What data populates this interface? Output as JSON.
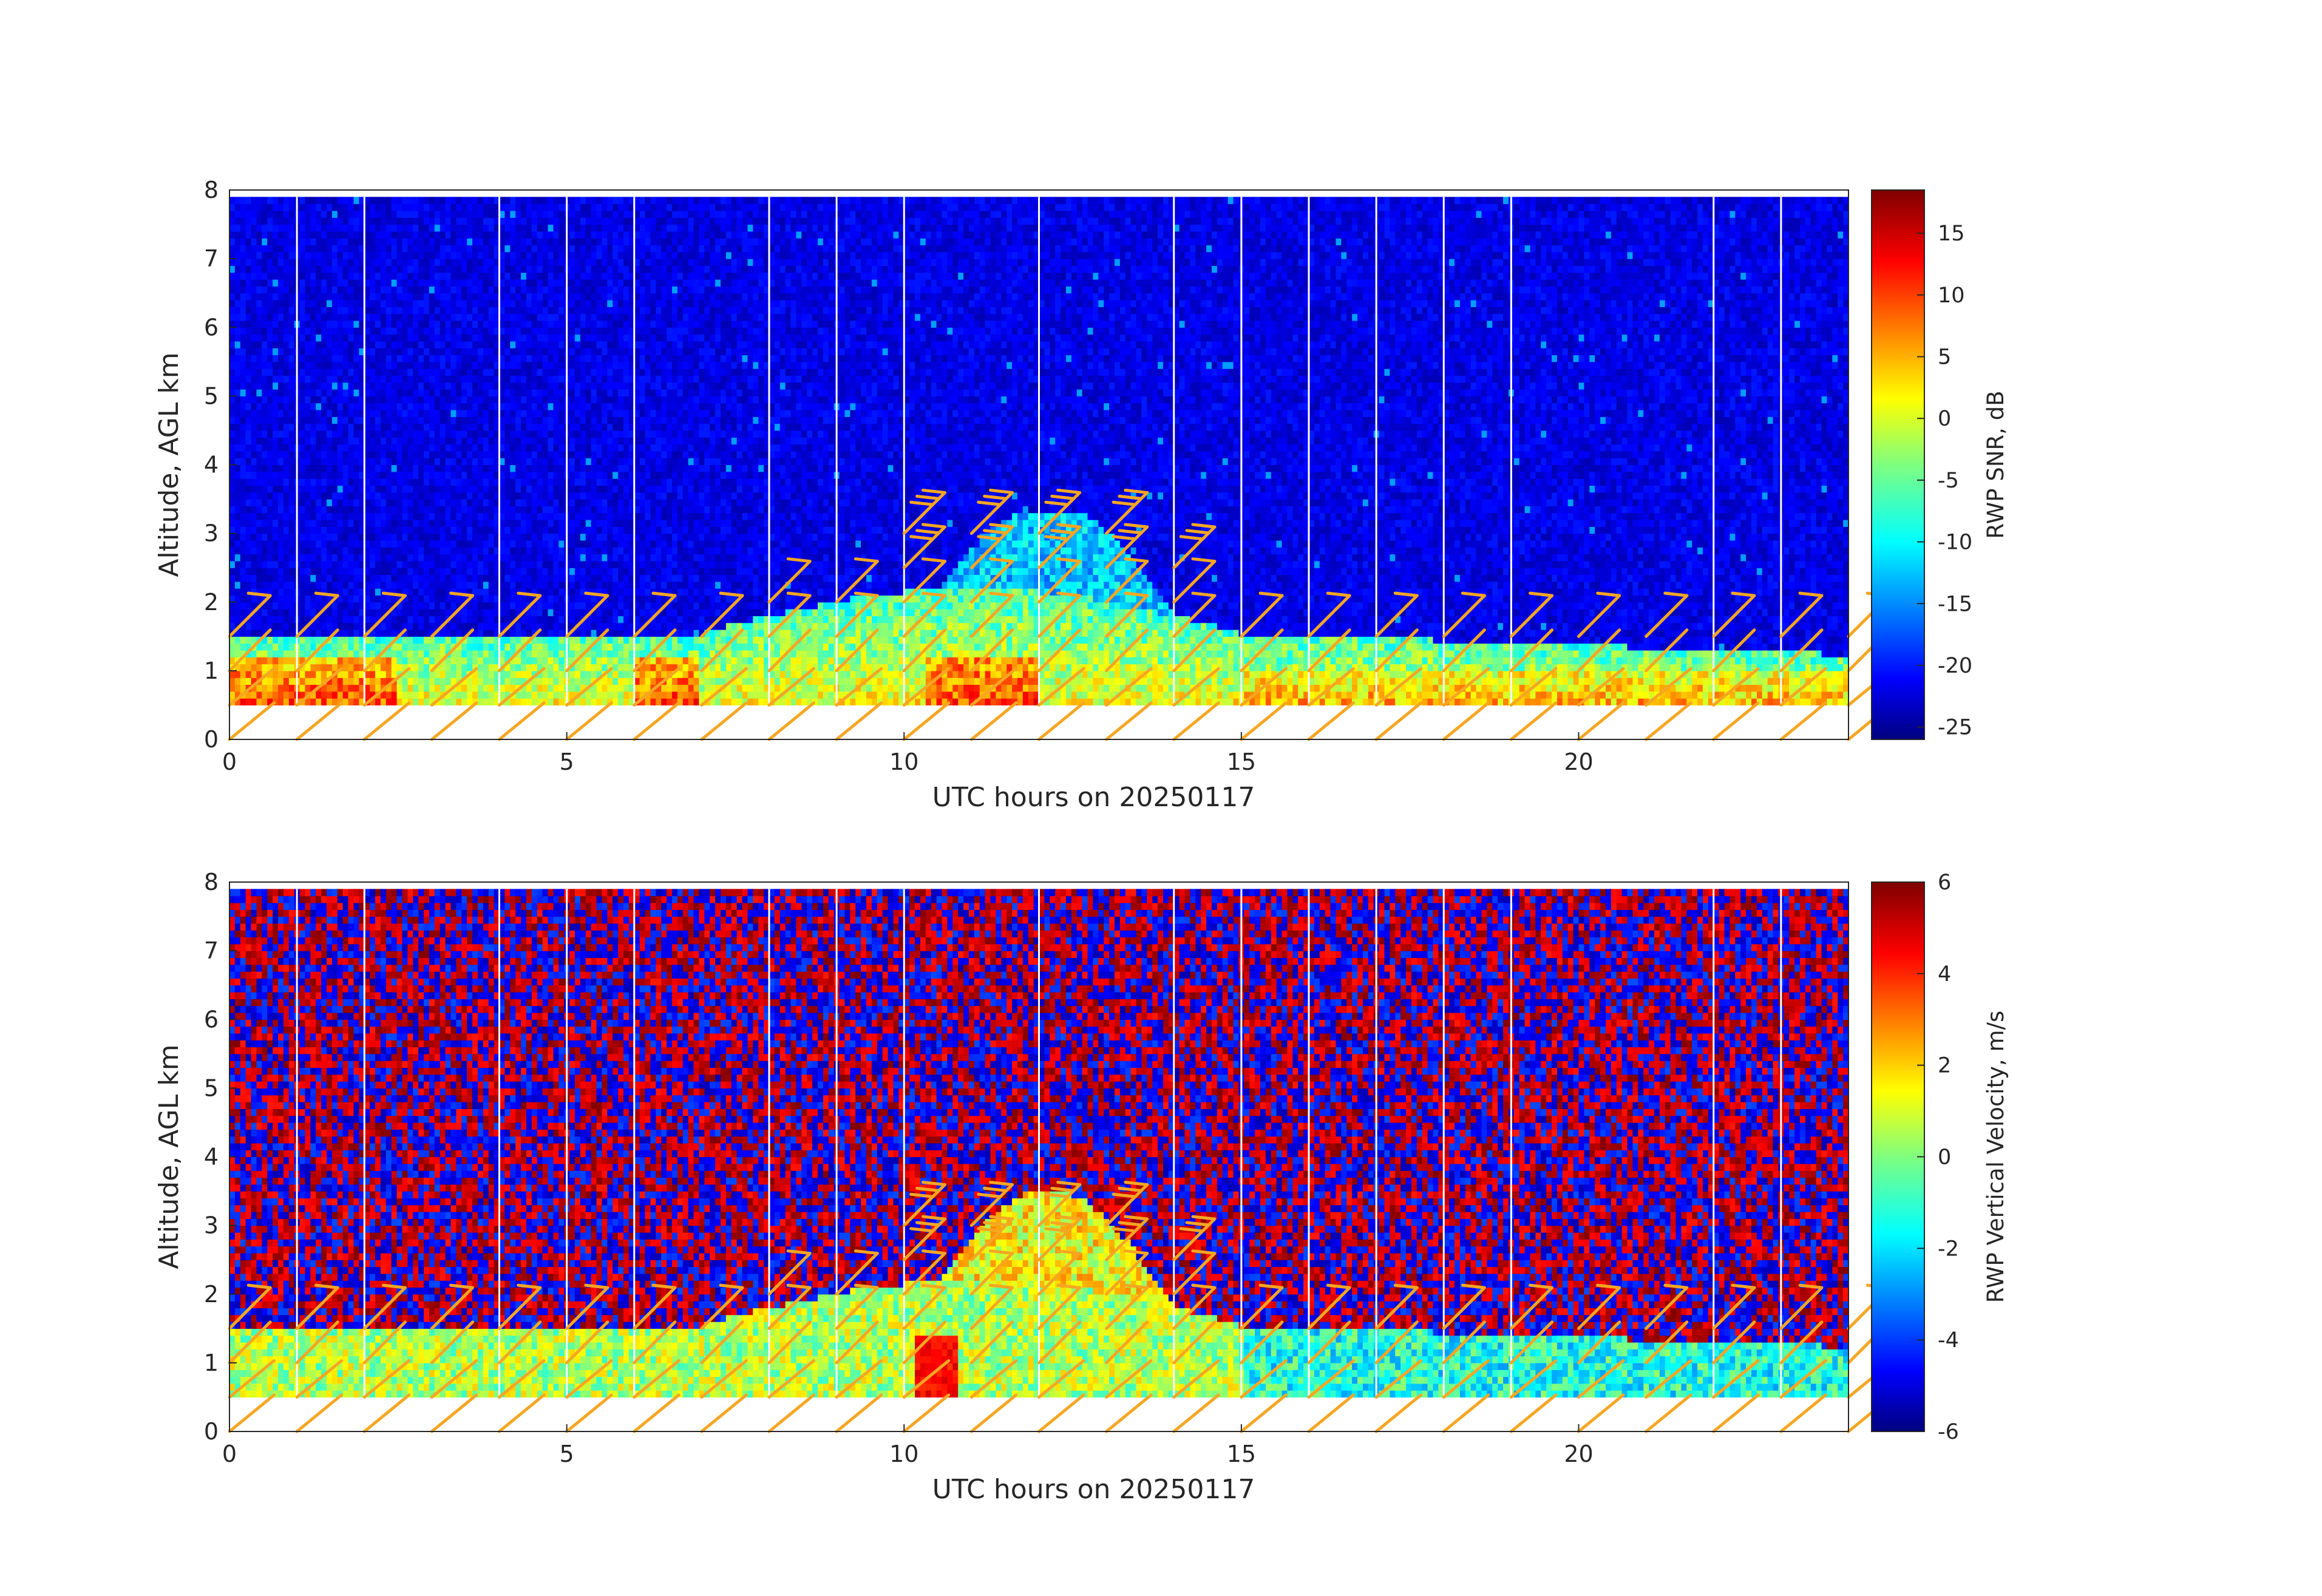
{
  "chart_data": [
    {
      "type": "heatmap",
      "xlabel": "UTC hours on 20250117",
      "ylabel": "Altitude, AGL km",
      "xlim": [
        0,
        24
      ],
      "ylim": [
        0,
        8
      ],
      "x_ticks": [
        0,
        5,
        10,
        15,
        20
      ],
      "y_ticks": [
        0,
        1,
        2,
        3,
        4,
        5,
        6,
        7,
        8
      ],
      "colorbar": {
        "label": "RWP SNR, dB",
        "range": [
          -26,
          18.5
        ],
        "ticks": [
          15,
          10,
          5,
          0,
          -5,
          -10,
          -15,
          -20,
          -25
        ],
        "colormap": "jet"
      },
      "field": "snr",
      "overlay": "wind barbs (orange)",
      "data_range_y": [
        0.5,
        7.9
      ],
      "gap_times_hours": [
        1,
        2,
        4,
        5,
        6,
        8,
        9,
        10,
        12,
        14,
        15,
        16,
        17,
        18,
        19,
        22,
        23
      ]
    },
    {
      "type": "heatmap",
      "xlabel": "UTC hours on 20250117",
      "ylabel": "Altitude, AGL km",
      "xlim": [
        0,
        24
      ],
      "ylim": [
        0,
        8
      ],
      "x_ticks": [
        0,
        5,
        10,
        15,
        20
      ],
      "y_ticks": [
        0,
        1,
        2,
        3,
        4,
        5,
        6,
        7,
        8
      ],
      "colorbar": {
        "label": "RWP Vertical Velocity, m/s",
        "range": [
          -6,
          6
        ],
        "ticks": [
          6,
          4,
          2,
          0,
          -2,
          -4,
          -6
        ],
        "colormap": "jet"
      },
      "field": "velocity",
      "overlay": "wind barbs (orange)",
      "data_range_y": [
        0.5,
        7.9
      ],
      "gap_times_hours": [
        1,
        2,
        4,
        5,
        6,
        8,
        9,
        10,
        12,
        14,
        15,
        16,
        17,
        18,
        19,
        22,
        23
      ]
    }
  ],
  "colors": {
    "barb": "#f5a623",
    "gap_line": "#ffffff",
    "axis": "#262626"
  }
}
